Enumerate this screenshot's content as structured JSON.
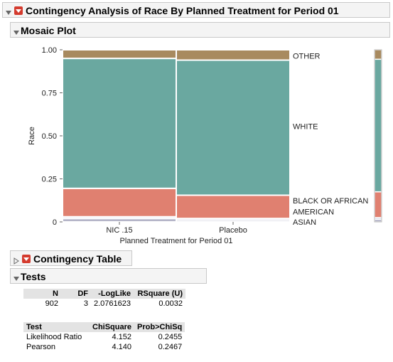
{
  "outline": {
    "main_title": "Contingency Analysis of Race By Planned Treatment for Period 01",
    "mosaic_title": "Mosaic Plot",
    "contingency_title": "Contingency Table",
    "tests_title": "Tests"
  },
  "chart_data": {
    "type": "mosaic",
    "ylabel": "Race",
    "xlabel": "Planned Treatment for Period 01",
    "y_ticks": [
      "1.00",
      "0.75",
      "0.50",
      "0.25",
      "0"
    ],
    "categories": [
      "NIC .15",
      "Placebo"
    ],
    "column_widths": [
      0.5,
      0.5
    ],
    "series": [
      {
        "name": "ASIAN",
        "color": "#b5b5c8",
        "values": [
          0.02,
          0.01
        ]
      },
      {
        "name": "AMERICAN",
        "color": "#c9cce6",
        "values": [
          0.01,
          0.01
        ]
      },
      {
        "name": "BLACK OR AFRICAN",
        "color": "#e08070",
        "values": [
          0.165,
          0.135
        ]
      },
      {
        "name": "WHITE",
        "color": "#6aa8a0",
        "values": [
          0.755,
          0.785
        ]
      },
      {
        "name": "OTHER",
        "color": "#a88a5f",
        "values": [
          0.05,
          0.06
        ]
      }
    ],
    "marginal": {
      "ASIAN": 0.015,
      "AMERICAN": 0.01,
      "BLACK OR AFRICAN": 0.15,
      "WHITE": 0.77,
      "OTHER": 0.055
    },
    "ylim": [
      0,
      1
    ]
  },
  "tests": {
    "summary_headers": [
      "N",
      "DF",
      "-LogLike",
      "RSquare (U)"
    ],
    "summary_row": [
      "902",
      "3",
      "2.0761623",
      "0.0032"
    ],
    "chisq_headers": [
      "Test",
      "ChiSquare",
      "Prob>ChiSq"
    ],
    "chisq_rows": [
      [
        "Likelihood Ratio",
        "4.152",
        "0.2455"
      ],
      [
        "Pearson",
        "4.140",
        "0.2467"
      ]
    ]
  }
}
